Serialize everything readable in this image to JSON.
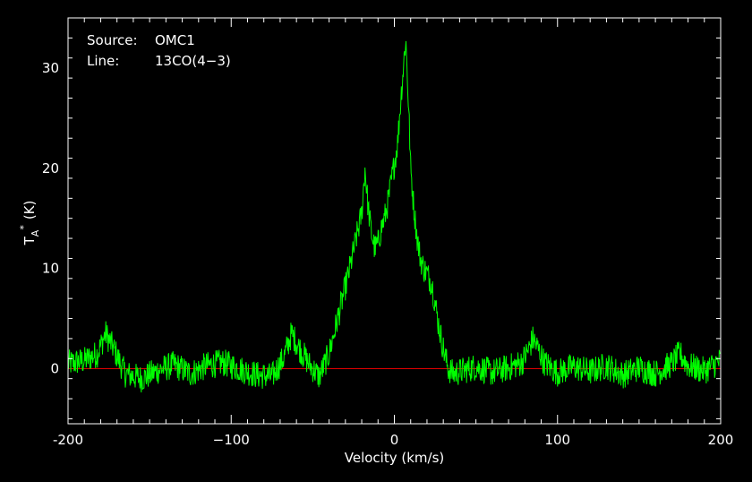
{
  "chart_data": {
    "type": "line",
    "xlabel": "Velocity (km/s)",
    "ylabel": {
      "main": "T",
      "sub": "A",
      "sup": "*",
      "unit": "(K)"
    },
    "xlim": [
      -200,
      200
    ],
    "ylim": [
      -5.5,
      35
    ],
    "x_ticks": [
      -200,
      -100,
      0,
      100,
      200
    ],
    "x_tick_labels": [
      "-200",
      "−100",
      "0",
      "100",
      "200"
    ],
    "y_ticks": [
      0,
      10,
      20,
      30
    ],
    "y_tick_labels": [
      "0",
      "10",
      "20",
      "30"
    ],
    "annotations": [
      {
        "key": "Source:",
        "value": "OMC1"
      },
      {
        "key": "Line:",
        "value": "13CO(4−3)"
      }
    ],
    "baseline": {
      "y": 0,
      "x_range": [
        -200,
        200
      ],
      "color": "#e00000"
    },
    "series": [
      {
        "color": "#00ff00",
        "x": [
          -200,
          -190,
          -182,
          -177,
          -172,
          -165,
          -155,
          -145,
          -135,
          -125,
          -115,
          -105,
          -95,
          -85,
          -75,
          -68,
          -63,
          -58,
          -52,
          -46,
          -40,
          -34,
          -28,
          -24,
          -20,
          -18,
          -16,
          -14,
          -12,
          -10,
          -8,
          -6,
          -4,
          -2,
          0,
          2,
          4,
          6,
          7,
          8,
          9,
          10,
          12,
          14,
          16,
          18,
          20,
          23,
          25,
          27,
          30,
          33,
          36,
          40,
          50,
          60,
          70,
          78,
          82,
          85,
          88,
          92,
          100,
          110,
          120,
          130,
          140,
          150,
          160,
          170,
          175,
          180,
          190,
          200
        ],
        "y": [
          0.5,
          0.8,
          1.5,
          3.5,
          2.0,
          -0.5,
          -1.0,
          -0.2,
          0.4,
          -0.5,
          0.3,
          0.6,
          0.0,
          -0.6,
          -0.8,
          1.0,
          3.5,
          2.0,
          0.4,
          -0.8,
          1.5,
          5.5,
          9.5,
          12.5,
          15.5,
          20.0,
          16.0,
          13.5,
          12.0,
          12.5,
          14.0,
          15.0,
          16.5,
          18.5,
          20.5,
          22.5,
          27.0,
          31.0,
          33.0,
          29.0,
          25.0,
          20.0,
          16.0,
          13.0,
          11.0,
          10.0,
          9.5,
          8.5,
          6.5,
          4.5,
          2.0,
          0.0,
          -0.5,
          -0.3,
          0.2,
          -0.4,
          0.1,
          0.6,
          1.8,
          3.0,
          2.0,
          0.6,
          -0.4,
          0.2,
          -0.3,
          0.3,
          -0.6,
          0.1,
          -0.5,
          0.5,
          1.5,
          0.3,
          -0.2,
          0.8
        ]
      }
    ]
  }
}
